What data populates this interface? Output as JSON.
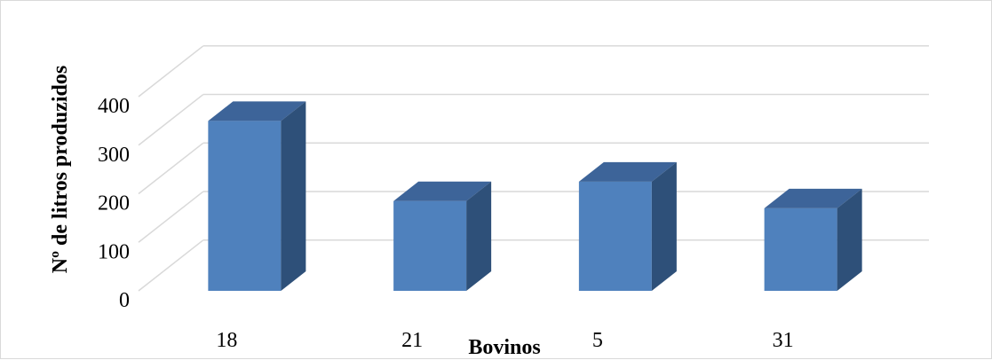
{
  "chart_data": {
    "type": "bar",
    "style": "3d-column",
    "categories": [
      "18",
      "21",
      "5",
      "31"
    ],
    "values": [
      350,
      185,
      225,
      170
    ],
    "xlabel": "Bovinos",
    "ylabel": "Nº de litros produzidos",
    "ylim": [
      0,
      400
    ],
    "yticks": [
      "0",
      "100",
      "200",
      "300",
      "400"
    ],
    "grid": true,
    "legend": "none",
    "colors": {
      "front": "#4f81bd",
      "top": "#3d6499",
      "side": "#2e5079",
      "grid": "#d9d9d9"
    }
  }
}
